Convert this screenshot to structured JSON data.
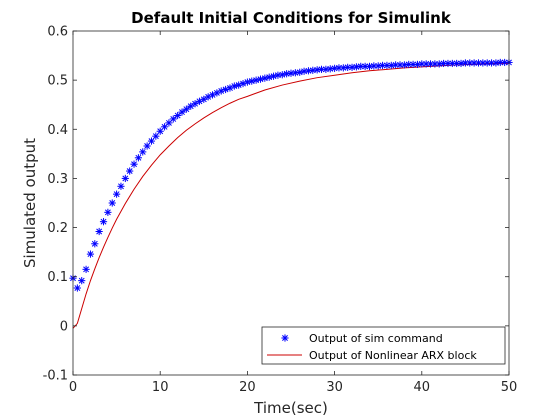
{
  "chart_data": {
    "type": "line",
    "title": "Default Initial Conditions for Simulink",
    "xlabel": "Time(sec)",
    "ylabel": "Simulated output",
    "xlim": [
      0,
      50
    ],
    "ylim": [
      -0.1,
      0.6
    ],
    "xticks": [
      "0",
      "10",
      "20",
      "30",
      "40",
      "50"
    ],
    "yticks": [
      "-0.1",
      "0",
      "0.1",
      "0.2",
      "0.3",
      "0.4",
      "0.5",
      "0.6"
    ],
    "grid": false,
    "legend_position": "bottom-right",
    "series": [
      {
        "name": "Output of sim command",
        "style": "marker",
        "marker": "asterisk",
        "color": "#0000ff",
        "x": [
          0,
          0.5,
          1,
          1.5,
          2,
          2.5,
          3,
          3.5,
          4,
          4.5,
          5,
          5.5,
          6,
          6.5,
          7,
          7.5,
          8,
          8.5,
          9,
          9.5,
          10,
          10.5,
          11,
          11.5,
          12,
          12.5,
          13,
          13.5,
          14,
          14.5,
          15,
          15.5,
          16,
          16.5,
          17,
          17.5,
          18,
          18.5,
          19,
          19.5,
          20,
          20.5,
          21,
          21.5,
          22,
          22.5,
          23,
          23.5,
          24,
          24.5,
          25,
          25.5,
          26,
          26.5,
          27,
          27.5,
          28,
          28.5,
          29,
          29.5,
          30,
          30.5,
          31,
          31.5,
          32,
          32.5,
          33,
          33.5,
          34,
          34.5,
          35,
          35.5,
          36,
          36.5,
          37,
          37.5,
          38,
          38.5,
          39,
          39.5,
          40,
          40.5,
          41,
          41.5,
          42,
          42.5,
          43,
          43.5,
          44,
          44.5,
          45,
          45.5,
          46,
          46.5,
          47,
          47.5,
          48,
          48.5,
          49,
          49.5,
          50
        ],
        "y": [
          0.097,
          0.077,
          0.092,
          0.115,
          0.146,
          0.167,
          0.192,
          0.212,
          0.231,
          0.25,
          0.268,
          0.284,
          0.3,
          0.315,
          0.329,
          0.342,
          0.354,
          0.366,
          0.376,
          0.386,
          0.396,
          0.405,
          0.413,
          0.421,
          0.428,
          0.435,
          0.441,
          0.447,
          0.452,
          0.457,
          0.461,
          0.466,
          0.47,
          0.474,
          0.478,
          0.481,
          0.484,
          0.488,
          0.49,
          0.493,
          0.496,
          0.498,
          0.5,
          0.502,
          0.504,
          0.506,
          0.508,
          0.51,
          0.511,
          0.513,
          0.514,
          0.515,
          0.516,
          0.518,
          0.519,
          0.52,
          0.521,
          0.522,
          0.522,
          0.523,
          0.524,
          0.525,
          0.525,
          0.526,
          0.526,
          0.527,
          0.528,
          0.528,
          0.528,
          0.529,
          0.529,
          0.53,
          0.53,
          0.53,
          0.531,
          0.531,
          0.531,
          0.532,
          0.532,
          0.532,
          0.533,
          0.533,
          0.533,
          0.533,
          0.533,
          0.534,
          0.534,
          0.534,
          0.534,
          0.534,
          0.535,
          0.535,
          0.535,
          0.535,
          0.535,
          0.535,
          0.535,
          0.535,
          0.536,
          0.536,
          0.536
        ]
      },
      {
        "name": "Output of Nonlinear ARX block",
        "style": "line",
        "color": "#cc0000",
        "x": [
          0,
          0.5,
          1,
          1.5,
          2,
          2.5,
          3,
          3.5,
          4,
          4.5,
          5,
          6,
          7,
          8,
          9,
          10,
          11,
          12,
          13,
          14,
          15,
          16,
          17,
          18,
          19,
          20,
          22,
          24,
          26,
          28,
          30,
          32,
          34,
          36,
          38,
          40,
          42,
          44,
          46,
          48,
          50
        ],
        "y": [
          -0.005,
          0.005,
          0.035,
          0.065,
          0.092,
          0.116,
          0.139,
          0.16,
          0.18,
          0.199,
          0.217,
          0.249,
          0.278,
          0.304,
          0.327,
          0.348,
          0.366,
          0.383,
          0.398,
          0.411,
          0.423,
          0.434,
          0.444,
          0.453,
          0.461,
          0.467,
          0.48,
          0.49,
          0.498,
          0.505,
          0.51,
          0.515,
          0.519,
          0.522,
          0.525,
          0.527,
          0.529,
          0.531,
          0.532,
          0.533,
          0.534
        ]
      }
    ]
  }
}
